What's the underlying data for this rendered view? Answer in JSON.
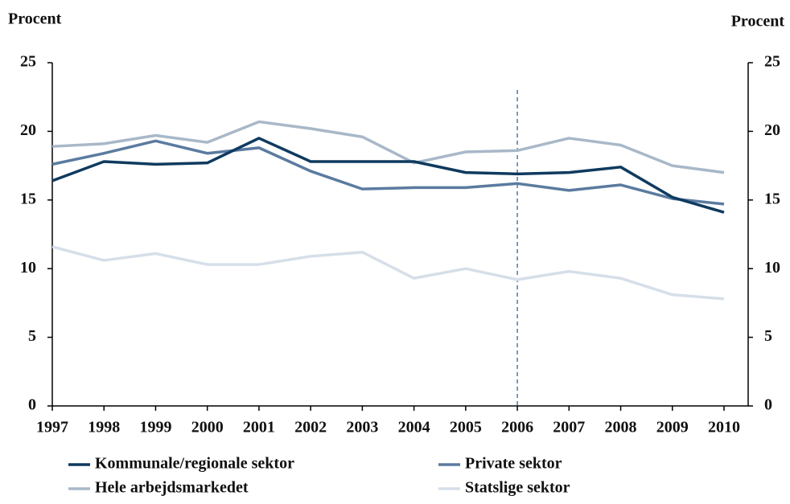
{
  "chart_data": {
    "type": "line",
    "y_label": "Procent",
    "y2_label": "Procent",
    "categories": [
      "1997",
      "1998",
      "1999",
      "2000",
      "2001",
      "2002",
      "2003",
      "2004",
      "2005",
      "2006",
      "2007",
      "2008",
      "2009",
      "2010"
    ],
    "series": [
      {
        "name": "Kommunale/regionale sektor",
        "color": "#0f3a5f",
        "values": [
          16.4,
          17.8,
          17.6,
          17.7,
          19.5,
          17.8,
          17.8,
          17.8,
          17.0,
          16.9,
          17.0,
          17.4,
          15.2,
          14.1
        ]
      },
      {
        "name": "Private sektor",
        "color": "#5b7b9f",
        "values": [
          17.6,
          18.4,
          19.3,
          18.4,
          18.8,
          17.1,
          15.8,
          15.9,
          15.9,
          16.2,
          15.7,
          16.1,
          15.1,
          14.7
        ]
      },
      {
        "name": "Hele arbejdsmarkedet",
        "color": "#a8b8c8",
        "values": [
          18.9,
          19.1,
          19.7,
          19.2,
          20.7,
          20.2,
          19.6,
          17.7,
          18.5,
          18.6,
          19.5,
          19.0,
          17.5,
          17.0
        ]
      },
      {
        "name": "Statslige sektor",
        "color": "#d6dfe9",
        "values": [
          11.6,
          10.6,
          11.1,
          10.3,
          10.3,
          10.9,
          11.2,
          9.3,
          10.0,
          9.2,
          9.8,
          9.3,
          8.1,
          7.8
        ]
      }
    ],
    "ylim": [
      0,
      25
    ],
    "yticks": [
      0,
      5,
      10,
      15,
      20,
      25
    ],
    "y2lim": [
      0,
      25
    ],
    "y2ticks": [
      0,
      5,
      10,
      15,
      20,
      25
    ],
    "reference_line": "2006",
    "reference_color": "#4a7aa8"
  }
}
